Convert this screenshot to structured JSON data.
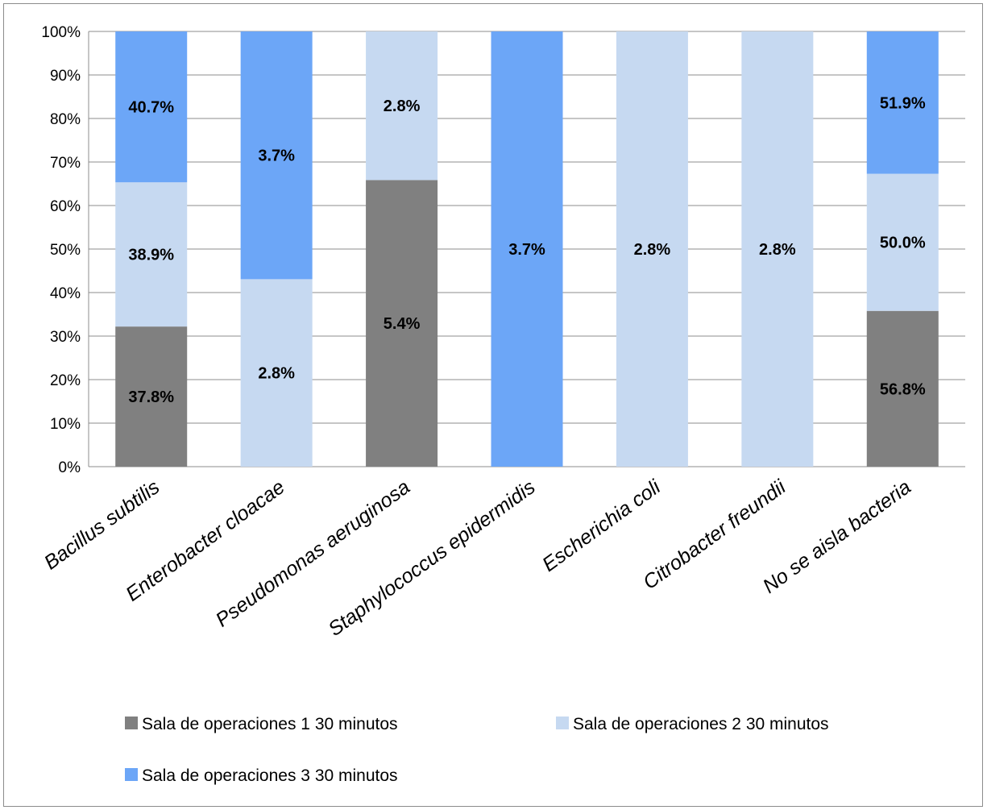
{
  "chart_data": {
    "type": "bar",
    "stacked": "percent",
    "categories": [
      "Bacillus subtilis",
      "Enterobacter cloacae",
      "Pseudomonas aeruginosa",
      "Staphylococcus epidermidis",
      "Escherichia coli",
      "Citrobacter freundii",
      "No se aisla bacteria"
    ],
    "series": [
      {
        "name": "Sala de operaciones 1 30 minutos",
        "color": "#808080",
        "values": [
          37.8,
          0,
          5.4,
          0,
          0,
          0,
          56.8
        ],
        "labels": [
          "37.8%",
          "",
          "5.4%",
          "",
          "",
          "",
          "56.8%"
        ]
      },
      {
        "name": "Sala de operaciones 2 30 minutos",
        "color": "#c6d9f1",
        "values": [
          38.9,
          2.8,
          2.8,
          0,
          2.8,
          2.8,
          50.0
        ],
        "labels": [
          "38.9%",
          "2.8%",
          "2.8%",
          "",
          "2.8%",
          "2.8%",
          "50.0%"
        ]
      },
      {
        "name": "Sala de operaciones 3 30 minutos",
        "color": "#6ca6f7",
        "values": [
          40.7,
          3.7,
          0,
          3.7,
          0,
          0,
          51.9
        ],
        "labels": [
          "40.7%",
          "3.7%",
          "",
          "3.7%",
          "",
          "",
          "51.9%"
        ]
      }
    ],
    "yticks": [
      "0%",
      "10%",
      "20%",
      "30%",
      "40%",
      "50%",
      "60%",
      "70%",
      "80%",
      "90%",
      "100%"
    ],
    "ylim": [
      0,
      100
    ],
    "grid": true,
    "legend_position": "bottom"
  }
}
